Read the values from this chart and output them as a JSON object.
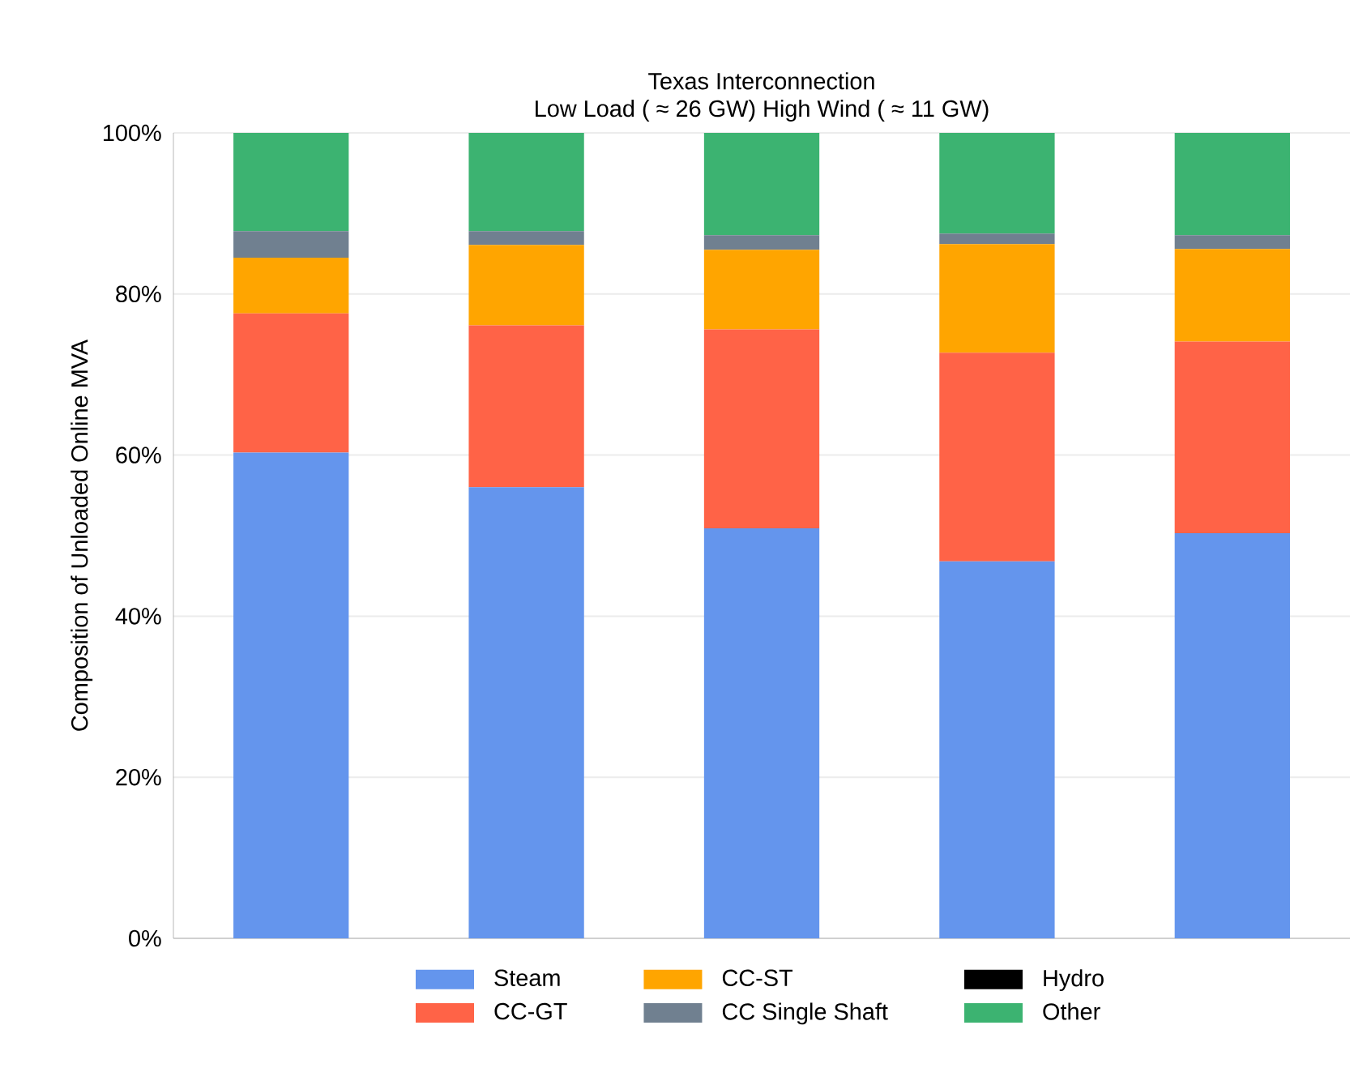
{
  "chart_data": {
    "type": "bar",
    "stacked": true,
    "title": "Texas Interconnection",
    "subtitle": "Low Load ( ≈ 26 GW) High Wind ( ≈ 11 GW)",
    "ylabel": "Composition of Unloaded Online MVA",
    "categories": [
      null,
      null,
      null,
      null,
      null
    ],
    "ylim": [
      0,
      100
    ],
    "yticks": [
      {
        "value": 0,
        "label": "0%"
      },
      {
        "value": 20,
        "label": "20%"
      },
      {
        "value": 40,
        "label": "40%"
      },
      {
        "value": 60,
        "label": "60%"
      },
      {
        "value": 80,
        "label": "80%"
      },
      {
        "value": 100,
        "label": "100%"
      }
    ],
    "grid": "y",
    "legend": "bottom",
    "series": [
      {
        "name": "Steam",
        "color": "#6495ed",
        "values": [
          60.3,
          56.0,
          50.9,
          46.8,
          50.3
        ]
      },
      {
        "name": "CC-GT",
        "color": "#ff6347",
        "values": [
          17.3,
          20.1,
          24.7,
          25.9,
          23.8
        ]
      },
      {
        "name": "CC-ST",
        "color": "#ffa500",
        "values": [
          6.9,
          10.0,
          9.9,
          13.5,
          11.5
        ]
      },
      {
        "name": "CC Single Shaft",
        "color": "#708090",
        "values": [
          3.3,
          1.7,
          1.8,
          1.3,
          1.7
        ]
      },
      {
        "name": "Hydro",
        "color": "#000000",
        "values": [
          0,
          0,
          0,
          0,
          0
        ]
      },
      {
        "name": "Other",
        "color": "#3cb371",
        "values": [
          12.2,
          12.2,
          12.7,
          12.5,
          12.7
        ]
      }
    ]
  }
}
